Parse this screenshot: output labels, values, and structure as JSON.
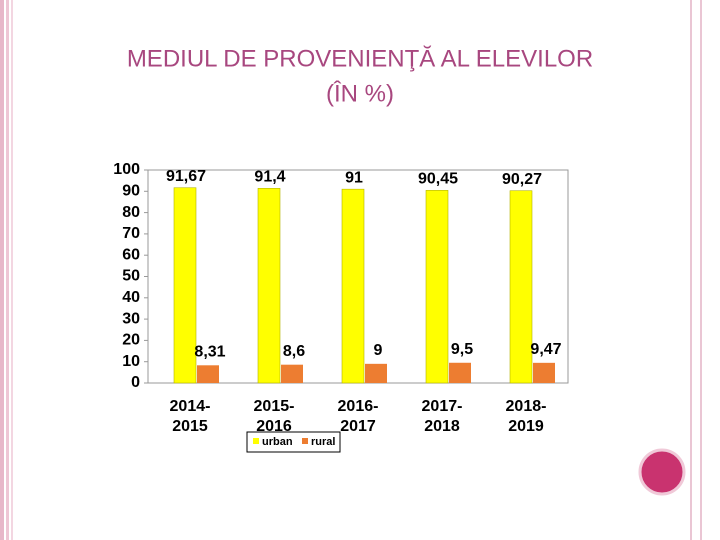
{
  "chart_data": {
    "type": "bar",
    "title": "MEDIUL DE PROVENIENŢĂ AL ELEVILOR",
    "subtitle": "(ÎN %)",
    "categories": [
      "2014-2015",
      "2015-2016",
      "2016-2017",
      "2017-2018",
      "2018-2019"
    ],
    "series": [
      {
        "name": "urban",
        "color": "#ffff00",
        "values": [
          91.67,
          91.4,
          91,
          90.45,
          90.27
        ],
        "value_labels": [
          "91,67",
          "91,4",
          "91",
          "90,45",
          "90,27"
        ]
      },
      {
        "name": "rural",
        "color": "#ed7d31",
        "values": [
          8.31,
          8.6,
          9,
          9.5,
          9.47
        ],
        "value_labels": [
          "8,31",
          "8,6",
          "9",
          "9,5",
          "9,47"
        ]
      }
    ],
    "ylim": [
      0,
      100
    ],
    "yticks": [
      0,
      10,
      20,
      30,
      40,
      50,
      60,
      70,
      80,
      90,
      100
    ],
    "grid": false,
    "legend": "bottom"
  }
}
